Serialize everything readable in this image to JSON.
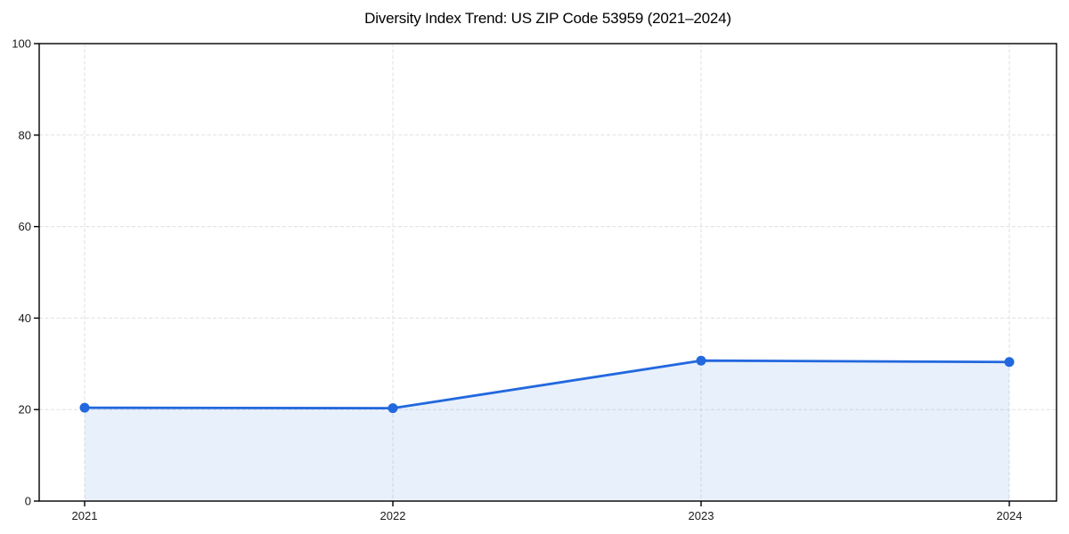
{
  "chart_data": {
    "type": "area",
    "title": "Diversity Index Trend: US ZIP Code 53959 (2021–2024)",
    "categories": [
      "2021",
      "2022",
      "2023",
      "2024"
    ],
    "series": [
      {
        "name": "Diversity Index",
        "values": [
          20.4,
          20.3,
          30.7,
          30.4
        ]
      }
    ],
    "xlabel": "",
    "ylabel": "",
    "ylim": [
      0,
      100
    ],
    "yticks": [
      0,
      20,
      40,
      60,
      80,
      100
    ],
    "ytick_labels": [
      "0",
      "20",
      "40",
      "60",
      "80",
      "100"
    ],
    "grid": true,
    "grid_style": "dashed",
    "legend_position": "none",
    "colors": {
      "line": "#2268DE",
      "marker": "#2268DE",
      "fill": "rgba(34, 104, 222, 0.10)",
      "grid": "#dfdfdf",
      "spine": "#000000",
      "tick_label": "#1a1a1a",
      "title": "#000000",
      "background": "#ffffff"
    }
  }
}
